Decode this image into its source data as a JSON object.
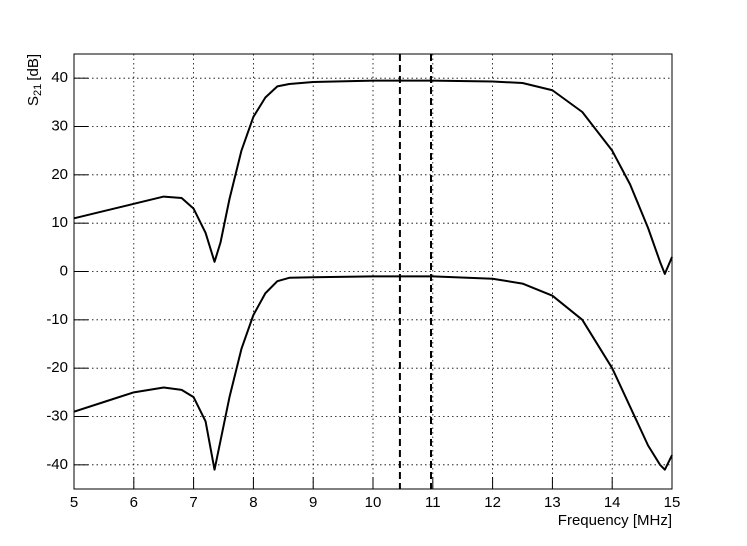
{
  "chart_data": {
    "type": "line",
    "x_label": "Frequency [MHz]",
    "y_label": {
      "main": "S",
      "sub": "21",
      "unit": "[dB]"
    },
    "x": [
      5,
      5.5,
      6,
      6.5,
      6.8,
      7,
      7.2,
      7.35,
      7.45,
      7.6,
      7.8,
      8,
      8.2,
      8.4,
      8.6,
      9,
      10,
      11,
      12,
      12.5,
      13,
      13.5,
      14,
      14.3,
      14.6,
      14.8,
      14.88,
      15
    ],
    "series": [
      {
        "color": "#000000",
        "values": [
          11,
          12.5,
          14,
          15.5,
          15.2,
          13,
          8,
          2,
          6,
          15,
          25,
          32,
          36,
          38.3,
          38.8,
          39.2,
          39.5,
          39.5,
          39.3,
          39,
          37.5,
          33,
          25,
          18,
          9,
          2,
          -0.5,
          3
        ]
      },
      {
        "color": "#000000",
        "values": [
          -29,
          -27,
          -25,
          -24,
          -24.5,
          -26,
          -31,
          -41,
          -35,
          -26,
          -16,
          -9,
          -4.5,
          -2,
          -1.3,
          -1.2,
          -1,
          -1,
          -1.5,
          -2.5,
          -5,
          -10,
          -20,
          -28,
          -36,
          -40,
          -41,
          -38
        ]
      }
    ],
    "vlines": [
      10.45,
      10.97
    ],
    "xlim": [
      5,
      15
    ],
    "ylim": [
      -45,
      45
    ],
    "xticks": [
      5,
      6,
      7,
      8,
      9,
      10,
      11,
      12,
      13,
      14,
      15
    ],
    "yticks": [
      -40,
      -30,
      -20,
      -10,
      0,
      10,
      20,
      30,
      40
    ],
    "grid": true
  }
}
